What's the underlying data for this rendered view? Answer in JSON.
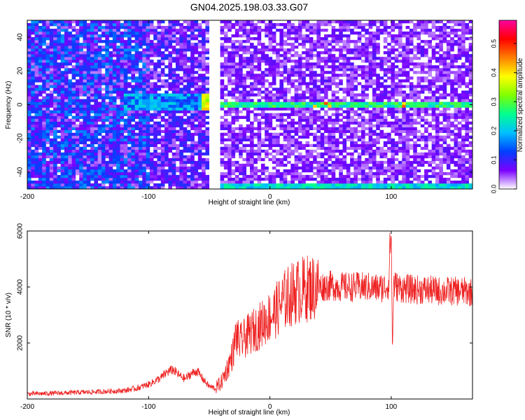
{
  "title": "GN04.2025.198.03.33.G07",
  "chart_data": [
    {
      "type": "heatmap",
      "xlabel": "Height of straight line (km)",
      "ylabel": "Frequency (Hz)",
      "xlim": [
        -200,
        167
      ],
      "ylim": [
        -50,
        50
      ],
      "xticks": [
        -200,
        -100,
        0,
        100
      ],
      "yticks": [
        -40,
        -20,
        0,
        20,
        40
      ],
      "colorbar": {
        "label": "Normalized spectral amplitude",
        "range": [
          0,
          0.58
        ],
        "ticks": [
          0.0,
          0.1,
          0.2,
          0.3,
          0.4,
          0.5
        ],
        "colors": [
          "#ffffff",
          "#7a00ff",
          "#0040ff",
          "#00c0ff",
          "#00ff90",
          "#80ff00",
          "#ffff00",
          "#ff8000",
          "#ff0000",
          "#ff00a0"
        ]
      },
      "gap_x": [
        -49,
        -41
      ],
      "main_band": {
        "x_start": -45,
        "x_end": 167,
        "frequency_hz": 0
      },
      "lower_band": {
        "x_start": -41,
        "x_end": 167,
        "frequency_hz": -49
      },
      "pre_gap_band": {
        "x_start": -120,
        "x_end": -49,
        "frequency_hz": 1
      },
      "grid": false
    },
    {
      "type": "line",
      "xlabel": "Height of straight line (km)",
      "ylabel": "SNR (10 * v/v)",
      "xlim": [
        -200,
        167
      ],
      "ylim": [
        0,
        6000
      ],
      "xticks": [
        -200,
        -100,
        0,
        100
      ],
      "yticks": [
        2000,
        4000,
        6000
      ],
      "color": "#ee2222",
      "series": [
        {
          "x": [
            -200,
            -180,
            -160,
            -140,
            -120,
            -110,
            -100,
            -90,
            -85,
            -80,
            -75,
            -70,
            -65,
            -60,
            -55,
            -50,
            -45,
            -40,
            -35,
            -30,
            -28,
            -25,
            -20,
            -15,
            -10,
            -5,
            0,
            5,
            10,
            15,
            20,
            30,
            40,
            50,
            60,
            70,
            80,
            90,
            95,
            98,
            99,
            100,
            101,
            102,
            105,
            110,
            120,
            130,
            140,
            150,
            160,
            167
          ],
          "y": [
            180,
            200,
            230,
            260,
            300,
            380,
            520,
            750,
            950,
            1050,
            850,
            720,
            900,
            1000,
            700,
            450,
            380,
            600,
            1100,
            1700,
            2300,
            2000,
            2200,
            2400,
            2550,
            2750,
            2950,
            3150,
            3450,
            3650,
            3800,
            3950,
            4000,
            4050,
            4000,
            4000,
            4000,
            3950,
            4000,
            4100,
            5500,
            6000,
            1700,
            4100,
            4000,
            3950,
            3900,
            3900,
            3850,
            3850,
            3850,
            3800
          ]
        }
      ]
    }
  ]
}
